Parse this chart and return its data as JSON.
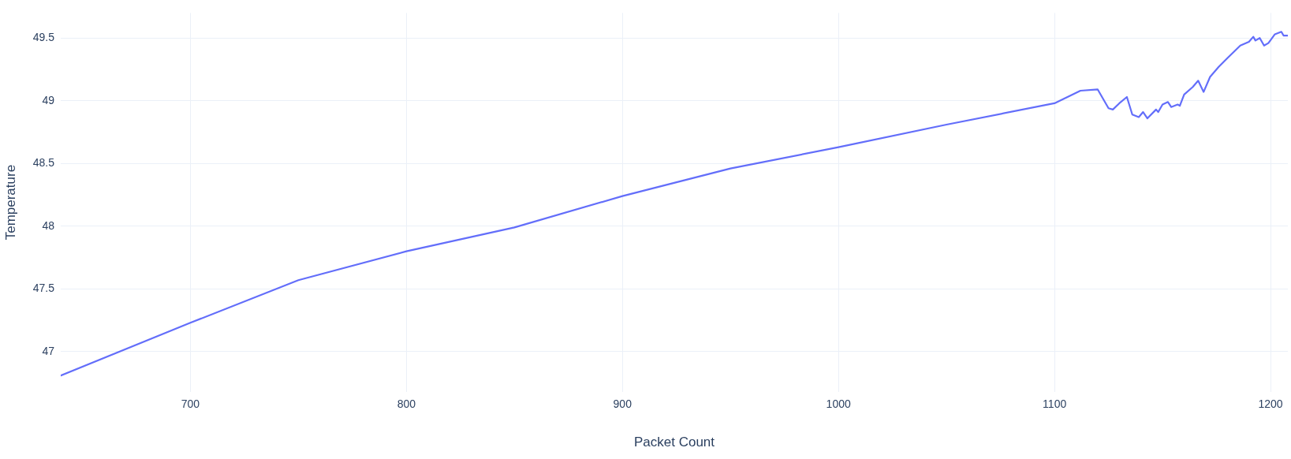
{
  "chart_data": {
    "type": "line",
    "xlabel": "Packet Count",
    "ylabel": "Temperature",
    "color": "#636efa",
    "grid": true,
    "legend": false,
    "marker": "none",
    "line_style": "solid",
    "x": [
      640,
      700,
      750,
      800,
      850,
      900,
      950,
      1000,
      1050,
      1100,
      1112,
      1120,
      1125,
      1127,
      1130,
      1133.5,
      1136,
      1139,
      1141,
      1143,
      1147,
      1148,
      1150,
      1152.5,
      1154,
      1157,
      1158,
      1160,
      1164,
      1166.5,
      1169,
      1172,
      1176,
      1180,
      1186,
      1190,
      1192,
      1193,
      1195,
      1197,
      1199,
      1202,
      1205,
      1206,
      1208
    ],
    "values": [
      46.81,
      47.23,
      47.57,
      47.8,
      47.99,
      48.24,
      48.46,
      48.63,
      48.81,
      48.98,
      49.08,
      49.09,
      48.94,
      48.93,
      48.98,
      49.03,
      48.89,
      48.87,
      48.91,
      48.86,
      48.93,
      48.91,
      48.97,
      48.99,
      48.95,
      48.97,
      48.96,
      49.05,
      49.11,
      49.16,
      49.07,
      49.19,
      49.27,
      49.34,
      49.44,
      49.47,
      49.51,
      49.48,
      49.5,
      49.44,
      49.46,
      49.53,
      49.55,
      49.52,
      49.52
    ],
    "xlim": [
      640,
      1208
    ],
    "xticks": [
      700,
      800,
      900,
      1000,
      1100,
      1200
    ],
    "ylim": [
      46.68,
      49.7
    ],
    "yticks": [
      47,
      47.5,
      48,
      48.5,
      49,
      49.5
    ]
  }
}
